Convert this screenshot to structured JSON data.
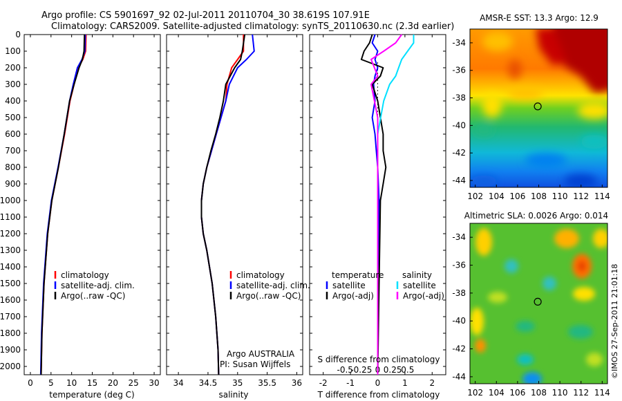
{
  "header": {
    "title_line1": "Argo profile: CS 5901697_92 02-Jul-2011 20110704_30 38.619S 107.91E",
    "title_line2": "Climatology: CARS2009. Satellite-adjusted climatology: synTS_20110630.nc (2.3d earlier)"
  },
  "credit": "©IMOS 27-Sep-2011 21:01:18",
  "colors": {
    "climatology": "#ff0000",
    "satellite": "#0000ff",
    "argo": "#000000",
    "satellite_salinity": "#00e0ff",
    "argo_salinity": "#ff00ff"
  },
  "chart_data": [
    {
      "type": "line",
      "xlabel": "temperature (deg C)",
      "ylabel": "",
      "xlim": [
        -1.5,
        31.5
      ],
      "ylim": [
        2050,
        0
      ],
      "x_ticks": [
        0,
        5,
        10,
        15,
        20,
        25,
        30
      ],
      "y_ticks": [
        0,
        100,
        200,
        300,
        400,
        500,
        600,
        700,
        800,
        900,
        1000,
        1100,
        1200,
        1300,
        1400,
        1500,
        1600,
        1700,
        1800,
        1900,
        2000
      ],
      "legend": [
        "climatology",
        "satellite-adj. clim.",
        "Argo(..raw -QC)"
      ],
      "legend_position": "bottom-center",
      "series": [
        {
          "name": "climatology",
          "color": "#ff0000",
          "depth": [
            0,
            100,
            150,
            200,
            300,
            400,
            600,
            800,
            1000,
            1200,
            1500,
            1800,
            2050
          ],
          "values": [
            13.5,
            13.4,
            12.7,
            11.6,
            10.6,
            9.6,
            8.3,
            6.8,
            5.2,
            4.2,
            3.3,
            2.8,
            2.6
          ]
        },
        {
          "name": "satellite-adj. clim.",
          "color": "#0000ff",
          "depth": [
            0,
            100,
            150,
            200,
            300,
            400,
            600,
            800,
            1000,
            1200,
            1500,
            1800,
            2050
          ],
          "values": [
            13.3,
            13.2,
            12.5,
            11.4,
            10.4,
            9.5,
            8.2,
            6.7,
            5.1,
            4.1,
            3.2,
            2.7,
            2.5
          ]
        },
        {
          "name": "Argo(..raw -QC)",
          "color": "#000000",
          "depth": [
            0,
            100,
            150,
            200,
            300,
            400,
            600,
            800,
            1000,
            1200,
            1500,
            1800,
            2050
          ],
          "values": [
            13.1,
            13.0,
            12.6,
            11.8,
            10.6,
            9.5,
            8.2,
            6.8,
            5.2,
            4.2,
            3.3,
            2.8,
            2.6
          ]
        }
      ]
    },
    {
      "type": "line",
      "xlabel": "salinity",
      "xlim": [
        33.8,
        36.1
      ],
      "ylim": [
        2050,
        0
      ],
      "x_ticks": [
        34,
        34.5,
        35,
        35.5,
        36
      ],
      "legend": [
        "climatology",
        "satellite-adj. clim.",
        "Argo(..raw -QC)"
      ],
      "legend_position": "bottom-right",
      "annotation": [
        "Argo AUSTRALIA",
        "PI: Susan Wijffels"
      ],
      "series": [
        {
          "name": "climatology",
          "color": "#ff0000",
          "depth": [
            0,
            100,
            150,
            200,
            300,
            400,
            500,
            600,
            700,
            800,
            900,
            1000,
            1100,
            1200,
            1300,
            1500,
            1700,
            1900,
            2050
          ],
          "values": [
            35.1,
            35.1,
            35.0,
            34.9,
            34.82,
            34.8,
            34.72,
            34.64,
            34.56,
            34.48,
            34.42,
            34.39,
            34.39,
            34.42,
            34.48,
            34.57,
            34.63,
            34.67,
            34.68
          ]
        },
        {
          "name": "satellite-adj. clim.",
          "color": "#0000ff",
          "depth": [
            0,
            100,
            150,
            200,
            300,
            400,
            500,
            600,
            700,
            800,
            900,
            1000,
            1100,
            1200,
            1300,
            1500,
            1700,
            1900,
            2050
          ],
          "values": [
            35.25,
            35.28,
            35.15,
            35.0,
            34.86,
            34.8,
            34.72,
            34.64,
            34.56,
            34.48,
            34.42,
            34.39,
            34.39,
            34.42,
            34.48,
            34.57,
            34.63,
            34.67,
            34.68
          ]
        },
        {
          "name": "Argo(..raw -QC)",
          "color": "#000000",
          "depth": [
            0,
            100,
            150,
            200,
            300,
            400,
            500,
            600,
            700,
            800,
            900,
            1000,
            1100,
            1200,
            1300,
            1500,
            1700,
            1900,
            2050
          ],
          "values": [
            35.12,
            35.08,
            35.05,
            34.95,
            34.8,
            34.76,
            34.7,
            34.63,
            34.55,
            34.48,
            34.42,
            34.39,
            34.39,
            34.42,
            34.48,
            34.57,
            34.63,
            34.67,
            34.68
          ]
        }
      ]
    },
    {
      "type": "line",
      "xlabel": "T difference from climatology",
      "top_axis_label": "S difference from climatology",
      "xlim": [
        -2.5,
        2.5
      ],
      "ylim": [
        2050,
        0
      ],
      "x_ticks": [
        -2,
        -1,
        0,
        1,
        2
      ],
      "top_ticks": [
        -0.5,
        -0.25,
        0,
        0.25,
        0.5
      ],
      "top_tick_labels": [
        "-0.5",
        "-0.25",
        "0",
        "0.25",
        "0.5"
      ],
      "legend_titles": [
        "temperature",
        "salinity"
      ],
      "legend": [
        "satellite",
        "Argo(-adj)",
        "satellite",
        "Argo(-adj)"
      ],
      "legend_position": "bottom",
      "series": [
        {
          "name": "satellite",
          "group": "temperature",
          "color": "#0000ff",
          "depth": [
            0,
            50,
            100,
            150,
            200,
            250,
            300,
            400,
            500,
            600,
            700,
            800,
            1000,
            1500,
            2050
          ],
          "values": [
            -0.1,
            -0.2,
            0.0,
            -0.1,
            0.0,
            -0.1,
            -0.15,
            -0.1,
            -0.2,
            -0.1,
            -0.05,
            0.0,
            0.05,
            0.0,
            0.0
          ]
        },
        {
          "name": "Argo(-adj)",
          "group": "temperature",
          "color": "#000000",
          "depth": [
            0,
            50,
            100,
            150,
            200,
            250,
            300,
            400,
            500,
            600,
            700,
            800,
            900,
            1000,
            1500,
            2050
          ],
          "values": [
            -0.2,
            -0.3,
            -0.5,
            -0.6,
            0.2,
            0.1,
            -0.2,
            0.0,
            0.1,
            0.2,
            0.2,
            0.3,
            0.2,
            0.1,
            0.05,
            0.0
          ]
        },
        {
          "name": "satellite",
          "group": "salinity",
          "color": "#00e0ff",
          "depth": [
            0,
            50,
            100,
            150,
            200,
            250,
            300,
            350,
            400,
            500,
            600,
            700,
            800,
            1000,
            1500,
            2050
          ],
          "values": [
            0.6,
            0.6,
            0.5,
            0.4,
            0.35,
            0.3,
            0.2,
            0.15,
            0.1,
            0.05,
            0.0,
            0.0,
            0.0,
            0.0,
            0.0,
            0.0
          ]
        },
        {
          "name": "Argo(-adj)",
          "group": "salinity",
          "color": "#ff00ff",
          "depth": [
            0,
            50,
            100,
            150,
            200,
            250,
            300,
            400,
            500,
            600,
            800,
            1000,
            1500,
            2050
          ],
          "values": [
            0.4,
            0.3,
            0.1,
            -0.1,
            -0.05,
            0.0,
            -0.1,
            -0.05,
            0.0,
            0.0,
            0.0,
            0.0,
            0.0,
            0.0
          ]
        }
      ]
    },
    {
      "type": "heatmap",
      "title": "AMSR-E SST: 13.3 Argo: 12.9",
      "xlim": [
        101.5,
        114.5
      ],
      "ylim": [
        -44.5,
        -33
      ],
      "x_ticks": [
        102,
        104,
        106,
        108,
        110,
        112,
        114
      ],
      "y_ticks": [
        -34,
        -36,
        -38,
        -40,
        -42,
        -44
      ],
      "marker": {
        "lon": 107.91,
        "lat": -38.619
      }
    },
    {
      "type": "heatmap",
      "title": "Altimetric SLA: 0.0026 Argo: 0.014",
      "xlim": [
        101.5,
        114.5
      ],
      "ylim": [
        -44.5,
        -33
      ],
      "x_ticks": [
        102,
        104,
        106,
        108,
        110,
        112,
        114
      ],
      "y_ticks": [
        -34,
        -36,
        -38,
        -40,
        -42,
        -44
      ],
      "marker": {
        "lon": 107.91,
        "lat": -38.619
      }
    }
  ]
}
